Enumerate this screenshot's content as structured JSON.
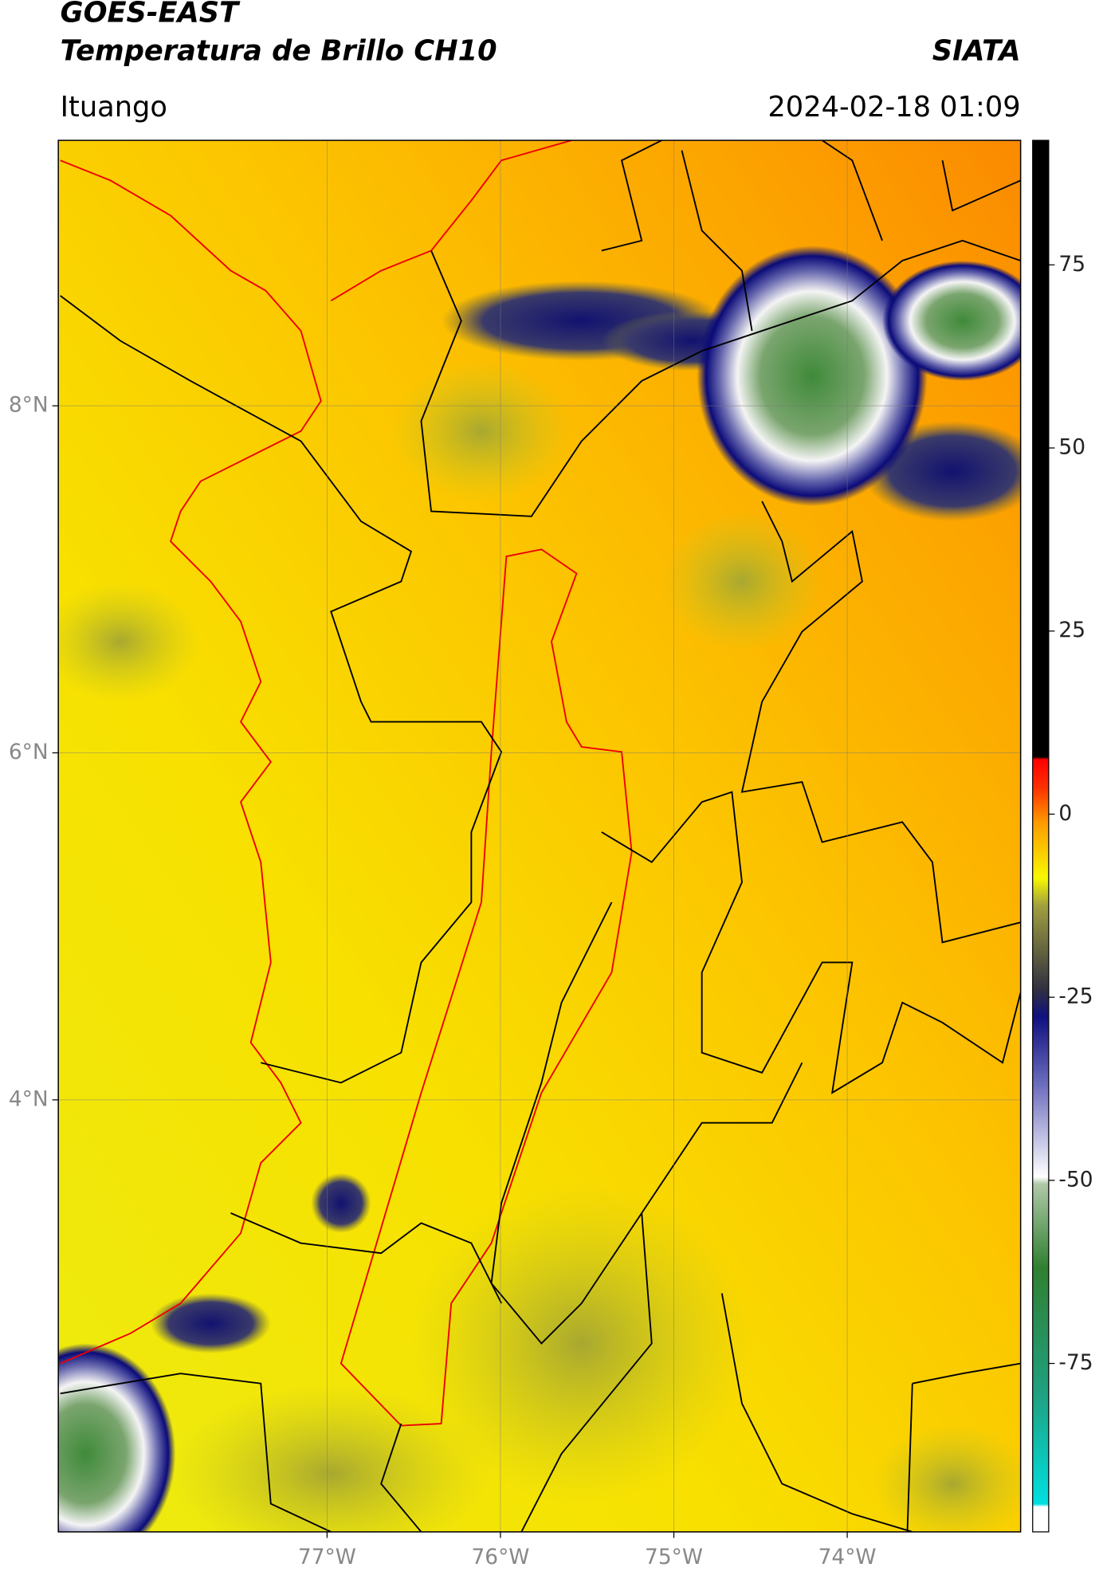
{
  "chart_data": {
    "type": "map",
    "title": "GOES-EAST",
    "subtitle": "Temperatura de Brillo CH10",
    "source": "SIATA",
    "location": "Ituango",
    "date": "2024-02-18 01:09",
    "xlim": [
      -78.55,
      -73.0
    ],
    "ylim": [
      1.51,
      9.53
    ],
    "xticks": [
      {
        "value": -77,
        "label": "77°W"
      },
      {
        "value": -76,
        "label": "76°W"
      },
      {
        "value": -75,
        "label": "75°W"
      },
      {
        "value": -74,
        "label": "74°W"
      }
    ],
    "yticks": [
      {
        "value": 8,
        "label": "8°N"
      },
      {
        "value": 6,
        "label": "6°N"
      },
      {
        "value": 4,
        "label": "4°N"
      }
    ],
    "grid": true,
    "colorbar": {
      "lim": [
        -98,
        92
      ],
      "ticks": [
        75,
        50,
        25,
        0,
        -25,
        -50,
        -75
      ]
    }
  }
}
